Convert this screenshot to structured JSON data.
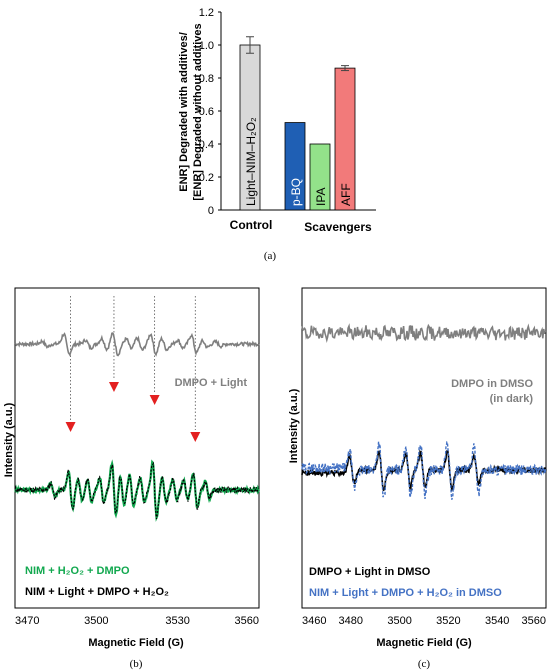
{
  "captions": {
    "a": "(a)",
    "b": "(b)",
    "c": "(c)"
  },
  "chart_data": [
    {
      "type": "bar",
      "panel": "a",
      "ylabel_line1": "ENR] Degraded with additives/",
      "ylabel_line2": "[ENR] Degraded without additives",
      "ylim": [
        0,
        1.2
      ],
      "yticks": [
        "0",
        "0.2",
        "0.4",
        "0.6",
        "0.8",
        "1.0",
        "1.2"
      ],
      "groups": [
        "Control",
        "Scavengers"
      ],
      "bars": [
        {
          "label": "Light–NIM–H₂O₂",
          "value": 1.0,
          "error": 0.05,
          "color": "#d9d9d9",
          "group": "Control"
        },
        {
          "label": "p-BQ",
          "value": 0.53,
          "error": 0.0,
          "color": "#1f5fb4",
          "group": "Scavengers"
        },
        {
          "label": "IPA",
          "value": 0.4,
          "error": 0.0,
          "color": "#93e28a",
          "group": "Scavengers"
        },
        {
          "label": "AFF",
          "value": 0.86,
          "error": 0.015,
          "color": "#f27a7a",
          "group": "Scavengers"
        }
      ]
    },
    {
      "type": "line",
      "panel": "b",
      "xlabel": "Magnetic Field (G)",
      "ylabel": "Intensity (a.u.)",
      "xlim": [
        3470,
        3560
      ],
      "xticks": [
        "3470",
        "3500",
        "3530",
        "3560"
      ],
      "peak_markers_x": [
        3490.5,
        3506.5,
        3521.5,
        3536.5
      ],
      "series": [
        {
          "name": "DMPO + Light",
          "color": "#7f7f7f"
        },
        {
          "name": "NIM + H₂O₂ + DMPO",
          "color": "#12a84f"
        },
        {
          "name": "NIM + Light + DMPO + H₂O₂",
          "color": "#000000"
        }
      ],
      "legend_lines": {
        "dmpo_light": "DMPO + Light",
        "nim_h2o2_dmpo": "NIM + H₂O₂ + DMPO",
        "nim_light_dmpo_h2o2": "NIM + Light + DMPO + H₂O₂"
      }
    },
    {
      "type": "line",
      "panel": "c",
      "xlabel": "Magnetic Field (G)",
      "ylabel": "Intensity (a.u.)",
      "xlim": [
        3460,
        3560
      ],
      "xticks": [
        "3460",
        "3480",
        "3500",
        "3520",
        "3540",
        "3560"
      ],
      "peak_x": [
        3480.5,
        3492.5,
        3503.5,
        3509.5,
        3520.5,
        3531.5
      ],
      "series": [
        {
          "name": "DMPO in DMSO (in dark)",
          "color": "#7f7f7f"
        },
        {
          "name": "DMPO + Light in DMSO",
          "color": "#000000"
        },
        {
          "name": "NIM + Light + DMPO + H₂O₂ in DMSO",
          "color": "#4472c4"
        }
      ],
      "legend_lines": {
        "dark_line1": "DMPO in DMSO",
        "dark_line2": "(in dark)",
        "light": "DMPO + Light in DMSO",
        "nim": "NIM + Light + DMPO + H₂O₂ in DMSO"
      }
    }
  ]
}
